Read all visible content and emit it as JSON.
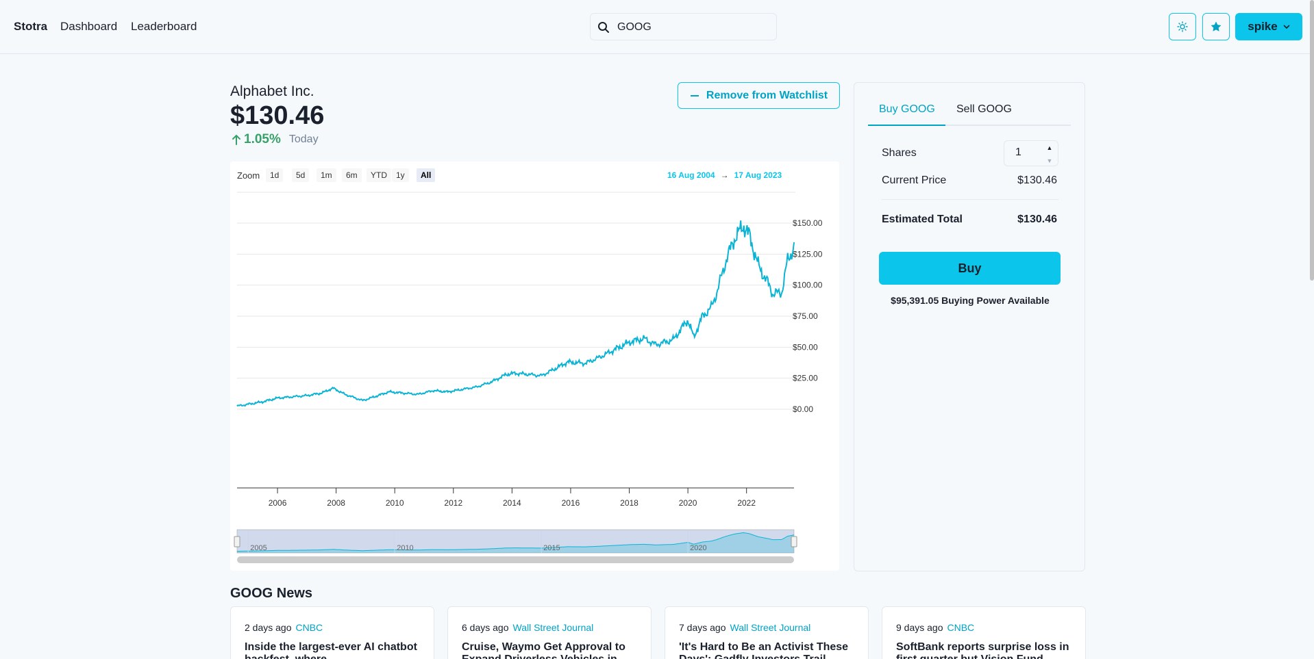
{
  "navbar": {
    "brand": "Stotra",
    "links": [
      "Dashboard",
      "Leaderboard"
    ],
    "search_value": "GOOG",
    "user": "spike"
  },
  "stock": {
    "company": "Alphabet Inc.",
    "price": "$130.46",
    "change": "1.05%",
    "period": "Today",
    "watchlist_label": "Remove from Watchlist"
  },
  "chart": {
    "zoom_label": "Zoom",
    "zoom_buttons": [
      "1d",
      "5d",
      "1m",
      "6m",
      "YTD",
      "1y",
      "All"
    ],
    "zoom_selected": "All",
    "range_from": "16 Aug 2004",
    "range_arrow": "→",
    "range_to": "17 Aug 2023"
  },
  "chart_data": {
    "type": "line",
    "series": [
      {
        "x": [
          2004.62,
          2005.0,
          2005.5,
          2006.0,
          2006.5,
          2007.0,
          2007.5,
          2007.9,
          2008.3,
          2008.9,
          2009.3,
          2009.8,
          2010.3,
          2010.8,
          2011.3,
          2011.8,
          2012.3,
          2012.8,
          2013.3,
          2013.8,
          2014.1,
          2014.6,
          2015.0,
          2015.5,
          2015.9,
          2016.5,
          2017.0,
          2017.5,
          2018.0,
          2018.5,
          2018.9,
          2019.5,
          2020.0,
          2020.2,
          2020.5,
          2020.8,
          2021.0,
          2021.3,
          2021.6,
          2021.9,
          2022.1,
          2022.4,
          2022.7,
          2022.9,
          2023.2,
          2023.4,
          2023.62
        ],
        "values": [
          2.5,
          4,
          6,
          9,
          10,
          11,
          13,
          17,
          12,
          7,
          10,
          14,
          13,
          12,
          15,
          14,
          16,
          18,
          22,
          28,
          29,
          28,
          27,
          33,
          38,
          37,
          42,
          48,
          54,
          57,
          52,
          56,
          72,
          58,
          75,
          82,
          95,
          120,
          138,
          148,
          140,
          116,
          103,
          93,
          94,
          120,
          130.46
        ]
      }
    ],
    "y_ticks": [
      "$0.00",
      "$25.00",
      "$50.00",
      "$75.00",
      "$100.00",
      "$125.00",
      "$150.00"
    ],
    "x_ticks": [
      "2006",
      "2008",
      "2010",
      "2012",
      "2014",
      "2016",
      "2018",
      "2020",
      "2022"
    ],
    "navigator_ticks": [
      "2005",
      "2010",
      "2015",
      "2020"
    ],
    "ylim": [
      0,
      150
    ],
    "xlim": [
      2004.62,
      2023.62
    ]
  },
  "trade": {
    "tabs": [
      "Buy GOOG",
      "Sell GOOG"
    ],
    "shares_label": "Shares",
    "shares_value": "1",
    "current_price_label": "Current Price",
    "current_price_value": "$130.46",
    "estimated_total_label": "Estimated Total",
    "estimated_total_value": "$130.46",
    "buy_label": "Buy",
    "buying_power": "$95,391.05 Buying Power Available"
  },
  "news": {
    "title": "GOOG News",
    "items": [
      {
        "age": "2 days ago",
        "source": "CNBC",
        "headline": "Inside the largest-ever AI chatbot hackfest, where"
      },
      {
        "age": "6 days ago",
        "source": "Wall Street Journal",
        "headline": "Cruise, Waymo Get Approval to Expand Driverless Vehicles in"
      },
      {
        "age": "7 days ago",
        "source": "Wall Street Journal",
        "headline": "'It's Hard to Be an Activist These Days': Gadfly Investors Trail"
      },
      {
        "age": "9 days ago",
        "source": "CNBC",
        "headline": "SoftBank reports surprise loss in first quarter but Vision Fund"
      }
    ]
  },
  "colors": {
    "accent": "#0bc5ea",
    "accent_text": "#00a3c4",
    "positive": "#38a169",
    "series": "#0bb4d4"
  }
}
